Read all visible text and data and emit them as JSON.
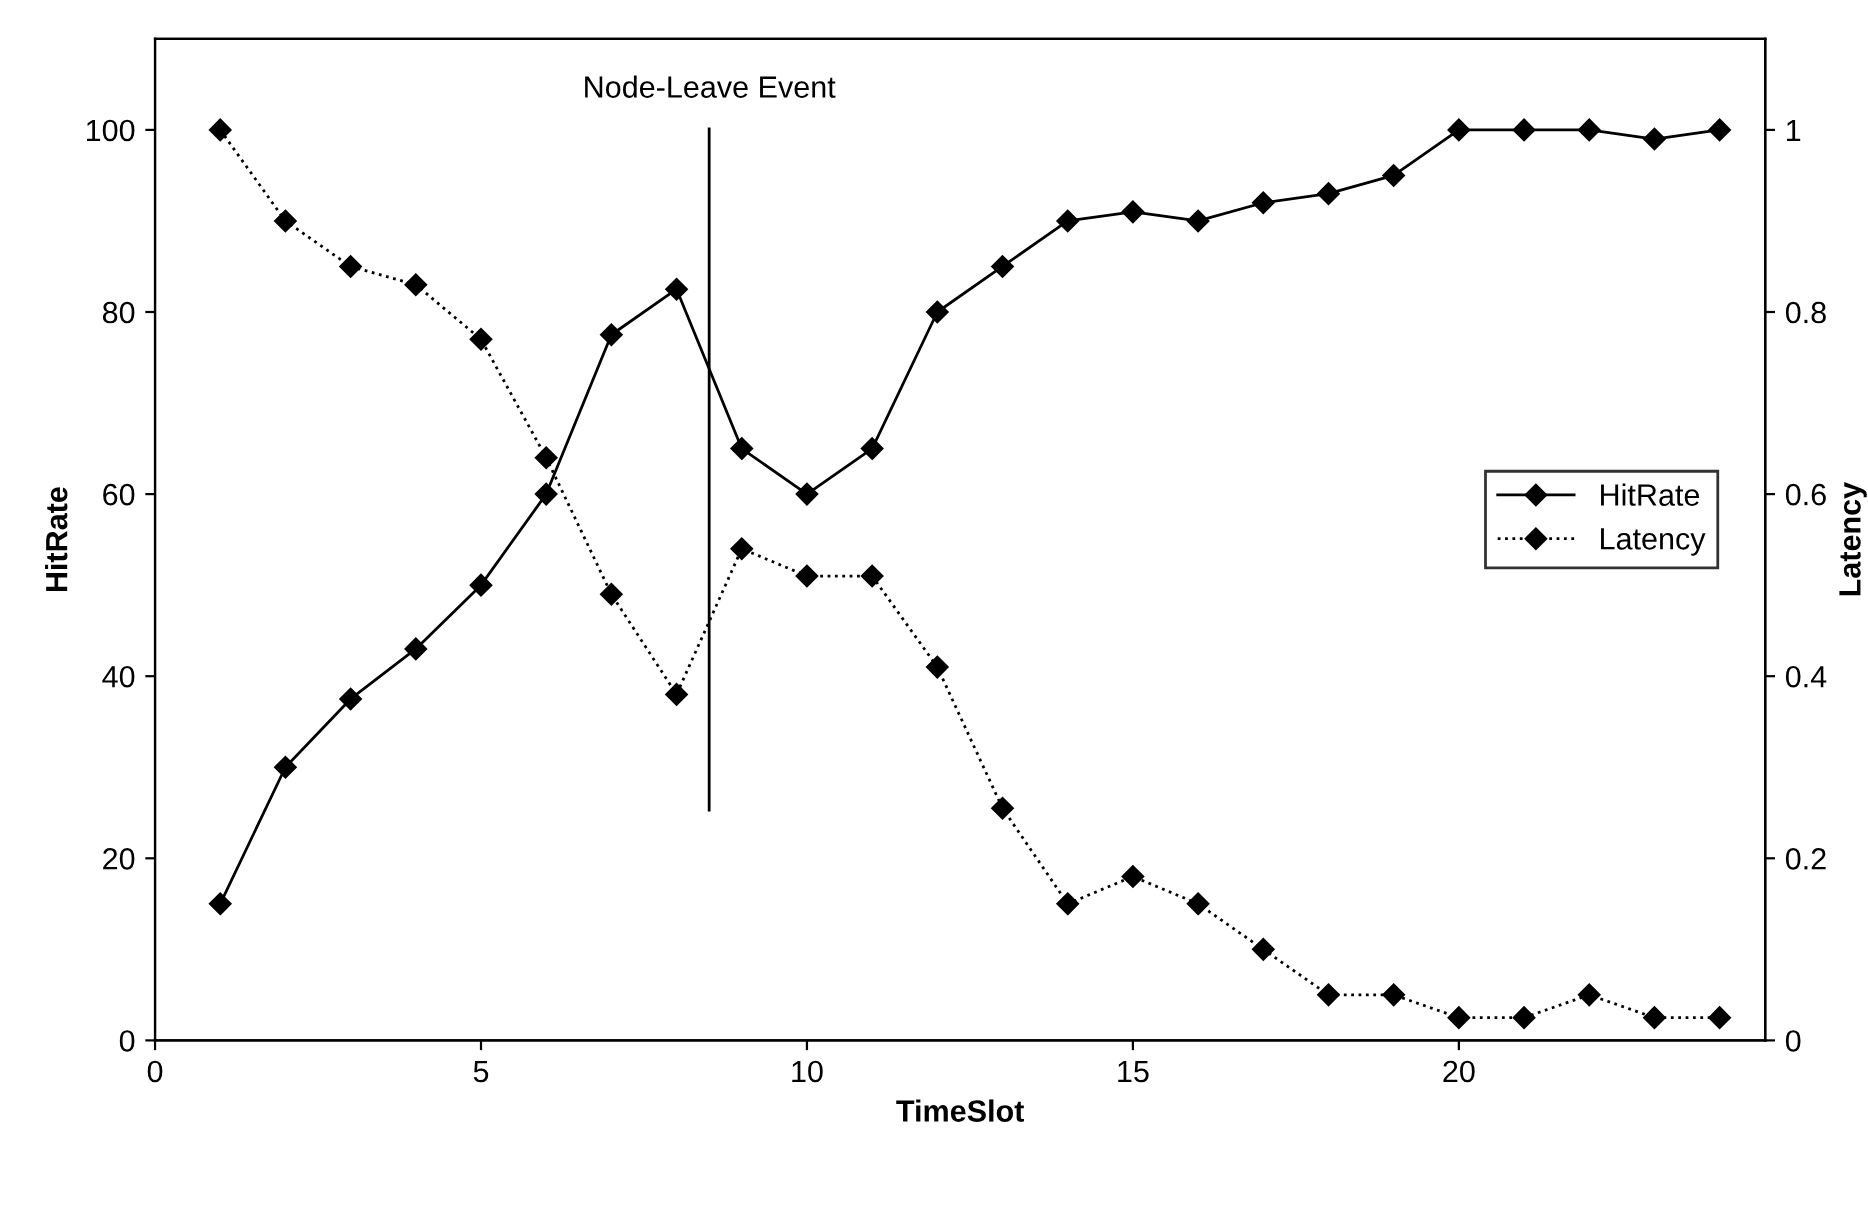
{
  "chart_data": {
    "type": "line",
    "xlabel": "TimeSlot",
    "ylabel": "HitRate",
    "y2label": "Latency",
    "x": [
      1,
      2,
      3,
      4,
      5,
      6,
      7,
      8,
      9,
      10,
      11,
      12,
      13,
      14,
      15,
      16,
      17,
      18,
      19,
      20,
      21,
      22,
      23,
      24
    ],
    "series": [
      {
        "name": "HitRate",
        "color": "#000000",
        "line_style": "solid",
        "values": [
          15,
          30,
          37.5,
          43,
          50,
          60,
          77.5,
          82.5,
          65,
          60,
          65,
          80,
          85,
          90,
          91,
          90,
          92,
          93,
          95,
          100,
          100,
          100,
          99,
          100
        ]
      },
      {
        "name": "Latency",
        "color": "#000000",
        "line_style": "dotted",
        "axis": "y2",
        "values": [
          1.0,
          0.9,
          0.85,
          0.83,
          0.77,
          0.64,
          0.49,
          0.38,
          0.54,
          0.51,
          0.51,
          0.41,
          0.255,
          0.15,
          0.18,
          0.15,
          0.1,
          0.05,
          0.05,
          0.025,
          0.025,
          0.05,
          0.025,
          0.025
        ]
      }
    ],
    "marker": "diamond",
    "legend": "right",
    "grid": false,
    "xlim": [
      0,
      24.7
    ],
    "xticks": [
      0,
      5,
      10,
      15,
      20
    ],
    "ylim": [
      0,
      110
    ],
    "yticks": [
      0,
      20,
      40,
      60,
      80,
      100
    ],
    "y2lim": [
      0,
      1.1
    ],
    "y2ticks": [
      0,
      0.2,
      0.4,
      0.6,
      0.8,
      1
    ],
    "ref_lines": [
      {
        "axis": "x",
        "value": 8.5,
        "label": "Node-Leave Event",
        "color": "#000000",
        "line_style": "solid"
      }
    ]
  }
}
